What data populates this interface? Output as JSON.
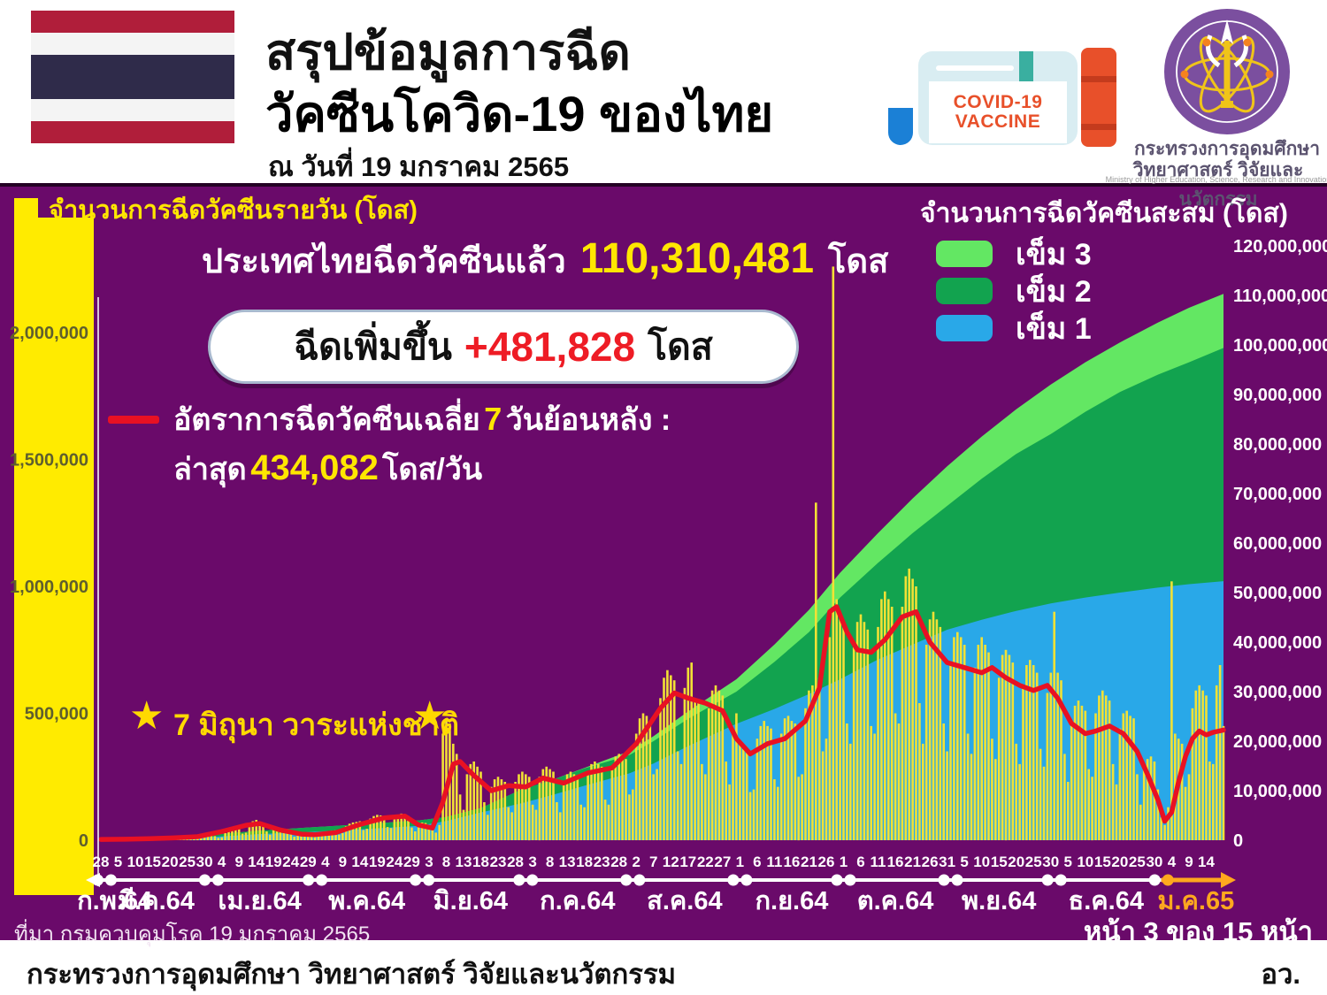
{
  "header": {
    "title_line1": "สรุปข้อมูลการฉีด",
    "title_line2": "วัคซีนโควิด-19 ของไทย",
    "date_line": "ณ วันที่ 19 มกราคม 2565",
    "vaccine_icon_line1": "COVID-19",
    "vaccine_icon_line2": "VACCINE",
    "logo_caption_line1": "กระทรวงการอุดมศึกษา",
    "logo_caption_line2": "วิทยาศาสตร์ วิจัยและนวัตกรรม",
    "logo_caption_en": "Ministry of Higher Education, Science, Research and Innovation"
  },
  "panel": {
    "daily_legend_label": "จำนวนการฉีดวัคซีนรายวัน (โดส)",
    "cumulative_legend": {
      "title": "จำนวนการฉีดวัคซีนสะสม (โดส)",
      "items": [
        {
          "label": "เข็ม 3",
          "color_key": "dose3"
        },
        {
          "label": "เข็ม 2",
          "color_key": "dose2"
        },
        {
          "label": "เข็ม 1",
          "color_key": "dose1"
        }
      ]
    },
    "total": {
      "prefix": "ประเทศไทยฉีดวัคซีนแล้ว",
      "value": "110,310,481",
      "suffix": "โดส"
    },
    "pill": {
      "prefix": "ฉีดเพิ่มขึ้น",
      "value": "+481,828",
      "suffix": "โดส"
    },
    "avg": {
      "line1_pre": "อัตราการฉีดวัคซีนเฉลี่ย",
      "line1_hl": "7",
      "line1_post": "วันย้อนหลัง :",
      "line2_pre": "ล่าสุด",
      "line2_hl": "434,082",
      "line2_post": "โดส/วัน"
    },
    "star_note": "7 มิถุนา วาระแห่งชาติ",
    "source": "ที่มา กรมควบคุมโรค 19 มกราคม 2565",
    "page": "หน้า 3 ของ 15 หน้า"
  },
  "footer": {
    "ministry": "กระทรวงการอุดมศึกษา วิทยาศาสตร์ วิจัยและนวัตกรรม",
    "abbr": "อว."
  },
  "colors": {
    "purple_bg": "#6a0a6a",
    "daily_square": "#ffeb00",
    "bar": "#f2e135",
    "dose1": "#29a8e8",
    "dose2": "#12a34f",
    "dose3": "#63e763",
    "line": "#e81123",
    "accent_yellow": "#ffe600",
    "jan_orange": "#ffa81e",
    "title_blue": "#1b80d6",
    "value_red": "#ee1c25"
  },
  "chart_data": {
    "type": "combo-bar-line-stacked-area",
    "x_start_date": "2021-02-28",
    "x_end_date": "2022-01-19",
    "left_axis": {
      "label": "จำนวนการฉีดวัคซีนรายวัน (โดส)",
      "range": [
        0,
        2000000
      ],
      "ticks": [
        {
          "v": 2000,
          "label": "2,000,000"
        },
        {
          "v": 1500,
          "label": "1,500,000"
        },
        {
          "v": 1000,
          "label": "1,000,000"
        },
        {
          "v": 500,
          "label": "500,000"
        },
        {
          "v": 0,
          "label": "0"
        }
      ]
    },
    "right_axis": {
      "label": "จำนวนการฉีดวัคซีนสะสม (โดส)",
      "range": [
        0,
        120000000
      ],
      "ticks": [
        {
          "v": 120,
          "label": "120,000,000"
        },
        {
          "v": 110,
          "label": "110,000,000"
        },
        {
          "v": 100,
          "label": "100,000,000"
        },
        {
          "v": 90,
          "label": "90,000,000"
        },
        {
          "v": 80,
          "label": "80,000,000"
        },
        {
          "v": 70,
          "label": "70,000,000"
        },
        {
          "v": 60,
          "label": "60,000,000"
        },
        {
          "v": 50,
          "label": "50,000,000"
        },
        {
          "v": 40,
          "label": "40,000,000"
        },
        {
          "v": 30,
          "label": "30,000,000"
        },
        {
          "v": 20,
          "label": "20,000,000"
        },
        {
          "v": 10,
          "label": "10,000,000"
        },
        {
          "v": 0,
          "label": "0"
        }
      ]
    },
    "x_tick_step_days": 5,
    "x_tick_labels": [
      "28",
      "5",
      "10",
      "15",
      "20",
      "25",
      "30",
      "4",
      "9",
      "14",
      "19",
      "24",
      "29",
      "4",
      "9",
      "14",
      "19",
      "24",
      "29",
      "3",
      "8",
      "13",
      "18",
      "23",
      "28",
      "3",
      "8",
      "13",
      "18",
      "23",
      "28",
      "2",
      "7",
      "12",
      "17",
      "22",
      "27",
      "1",
      "6",
      "11",
      "16",
      "21",
      "26",
      "1",
      "6",
      "11",
      "16",
      "21",
      "26",
      "31",
      "5",
      "10",
      "15",
      "20",
      "25",
      "30",
      "5",
      "10",
      "15",
      "20",
      "25",
      "30",
      "4",
      "9",
      "14"
    ],
    "month_labels": [
      {
        "d": 4,
        "label": "ก.พ.64"
      },
      {
        "d": 16,
        "label": "มี.ค.64"
      },
      {
        "d": 46,
        "label": "เม.ย.64"
      },
      {
        "d": 77,
        "label": "พ.ค.64"
      },
      {
        "d": 107,
        "label": "มิ.ย.64"
      },
      {
        "d": 138,
        "label": "ก.ค.64"
      },
      {
        "d": 169,
        "label": "ส.ค.64"
      },
      {
        "d": 200,
        "label": "ก.ย.64"
      },
      {
        "d": 230,
        "label": "ต.ค.64"
      },
      {
        "d": 260,
        "label": "พ.ย.64"
      },
      {
        "d": 291,
        "label": "ธ.ค.64"
      },
      {
        "d": 317,
        "label": "ม.ค.65",
        "highlight": true
      }
    ],
    "month_boundaries_d": [
      1,
      32,
      62,
      93,
      123,
      154,
      185,
      215,
      246,
      276,
      307
    ],
    "annotation": {
      "star_day": 99,
      "text": "7 มิถุนา วาระแห่งชาติ"
    },
    "daily_doses_k": [
      2,
      3,
      4,
      4,
      4,
      4,
      2,
      3,
      5,
      6,
      6,
      5,
      5,
      3,
      4,
      7,
      8,
      8,
      7,
      7,
      4,
      5,
      9,
      11,
      11,
      10,
      10,
      6,
      7,
      14,
      17,
      18,
      17,
      16,
      9,
      12,
      28,
      38,
      42,
      45,
      48,
      26,
      30,
      62,
      75,
      80,
      70,
      60,
      35,
      22,
      45,
      50,
      48,
      44,
      40,
      22,
      14,
      26,
      28,
      27,
      26,
      25,
      14,
      16,
      30,
      34,
      36,
      38,
      40,
      22,
      28,
      55,
      65,
      70,
      72,
      75,
      40,
      45,
      85,
      95,
      100,
      98,
      95,
      52,
      48,
      90,
      100,
      105,
      100,
      95,
      50,
      35,
      65,
      70,
      68,
      60,
      55,
      30,
      60,
      420,
      480,
      460,
      380,
      340,
      180,
      120,
      260,
      300,
      310,
      290,
      270,
      150,
      100,
      210,
      240,
      250,
      240,
      230,
      130,
      110,
      230,
      260,
      270,
      260,
      250,
      140,
      120,
      250,
      280,
      290,
      280,
      270,
      150,
      110,
      230,
      260,
      270,
      260,
      250,
      140,
      130,
      270,
      300,
      310,
      300,
      290,
      160,
      140,
      290,
      330,
      340,
      330,
      320,
      180,
      200,
      420,
      480,
      500,
      490,
      470,
      260,
      280,
      560,
      640,
      670,
      650,
      630,
      350,
      300,
      600,
      680,
      700,
      560,
      540,
      300,
      260,
      520,
      590,
      610,
      590,
      570,
      310,
      220,
      440,
      500,
      380,
      360,
      350,
      190,
      200,
      400,
      450,
      470,
      450,
      440,
      240,
      210,
      420,
      480,
      490,
      470,
      460,
      250,
      260,
      520,
      590,
      610,
      1330,
      640,
      350,
      400,
      800,
      2260,
      950,
      900,
      850,
      460,
      380,
      760,
      860,
      890,
      860,
      830,
      450,
      420,
      840,
      950,
      980,
      950,
      920,
      500,
      460,
      920,
      1040,
      1070,
      1030,
      1000,
      540,
      380,
      770,
      870,
      900,
      870,
      840,
      460,
      350,
      700,
      800,
      820,
      800,
      770,
      420,
      340,
      680,
      770,
      800,
      770,
      740,
      400,
      320,
      640,
      730,
      750,
      730,
      700,
      380,
      300,
      610,
      690,
      710,
      690,
      660,
      360,
      290,
      580,
      660,
      900,
      660,
      630,
      340,
      230,
      470,
      530,
      550,
      530,
      510,
      280,
      250,
      500,
      570,
      590,
      570,
      550,
      300,
      220,
      440,
      500,
      510,
      490,
      480,
      260,
      140,
      280,
      320,
      330,
      310,
      200,
      90,
      60,
      130,
      1020,
      420,
      400,
      380,
      210,
      260,
      520,
      590,
      610,
      590,
      570,
      310,
      300,
      610,
      690,
      450
    ],
    "avg_line_k": [
      [
        0,
        3
      ],
      [
        7,
        4
      ],
      [
        14,
        6
      ],
      [
        21,
        9
      ],
      [
        28,
        14
      ],
      [
        35,
        34
      ],
      [
        42,
        59
      ],
      [
        46,
        66
      ],
      [
        52,
        40
      ],
      [
        58,
        24
      ],
      [
        62,
        22
      ],
      [
        68,
        30
      ],
      [
        75,
        62
      ],
      [
        82,
        88
      ],
      [
        88,
        95
      ],
      [
        92,
        60
      ],
      [
        96,
        48
      ],
      [
        99,
        150
      ],
      [
        102,
        300
      ],
      [
        104,
        310
      ],
      [
        108,
        255
      ],
      [
        113,
        195
      ],
      [
        118,
        215
      ],
      [
        123,
        210
      ],
      [
        128,
        245
      ],
      [
        134,
        225
      ],
      [
        141,
        265
      ],
      [
        148,
        285
      ],
      [
        155,
        380
      ],
      [
        162,
        520
      ],
      [
        166,
        580
      ],
      [
        170,
        560
      ],
      [
        175,
        540
      ],
      [
        180,
        510
      ],
      [
        184,
        400
      ],
      [
        188,
        340
      ],
      [
        193,
        380
      ],
      [
        198,
        400
      ],
      [
        204,
        470
      ],
      [
        208,
        600
      ],
      [
        211,
        900
      ],
      [
        213,
        920
      ],
      [
        216,
        820
      ],
      [
        219,
        750
      ],
      [
        223,
        740
      ],
      [
        227,
        790
      ],
      [
        232,
        880
      ],
      [
        236,
        900
      ],
      [
        240,
        780
      ],
      [
        245,
        700
      ],
      [
        250,
        680
      ],
      [
        255,
        660
      ],
      [
        258,
        680
      ],
      [
        262,
        640
      ],
      [
        266,
        610
      ],
      [
        270,
        590
      ],
      [
        274,
        610
      ],
      [
        277,
        560
      ],
      [
        281,
        460
      ],
      [
        285,
        420
      ],
      [
        288,
        430
      ],
      [
        292,
        450
      ],
      [
        296,
        420
      ],
      [
        300,
        350
      ],
      [
        303,
        260
      ],
      [
        306,
        160
      ],
      [
        308,
        75
      ],
      [
        310,
        110
      ],
      [
        312,
        230
      ],
      [
        314,
        330
      ],
      [
        316,
        400
      ],
      [
        318,
        430
      ],
      [
        320,
        415
      ],
      [
        322,
        425
      ],
      [
        325,
        434
      ]
    ],
    "cumulative_m": [
      [
        0,
        0,
        0,
        0
      ],
      [
        15,
        0.03,
        0.04,
        0.04
      ],
      [
        31,
        0.6,
        1.0,
        1.0
      ],
      [
        45,
        1.2,
        1.9,
        1.9
      ],
      [
        61,
        1.7,
        2.6,
        2.6
      ],
      [
        75,
        2.2,
        3.2,
        3.2
      ],
      [
        92,
        2.9,
        4.0,
        4.0
      ],
      [
        100,
        3.9,
        4.7,
        4.7
      ],
      [
        110,
        5.6,
        6.5,
        6.5
      ],
      [
        122,
        7.5,
        10.3,
        10.3
      ],
      [
        130,
        9.0,
        12.0,
        12.0
      ],
      [
        140,
        11.0,
        14.5,
        14.6
      ],
      [
        153,
        13.5,
        17.2,
        18.0
      ],
      [
        160,
        15.5,
        20.0,
        21.0
      ],
      [
        170,
        19.0,
        24.5,
        26.0
      ],
      [
        184,
        23.5,
        30.0,
        32.5
      ],
      [
        195,
        26.5,
        36.0,
        39.5
      ],
      [
        205,
        29.5,
        42.0,
        46.5
      ],
      [
        214,
        32.5,
        49.0,
        54.0
      ],
      [
        225,
        36.5,
        56.0,
        62.0
      ],
      [
        235,
        39.5,
        62.0,
        69.0
      ],
      [
        245,
        42.5,
        67.5,
        75.5
      ],
      [
        255,
        44.5,
        73.0,
        81.5
      ],
      [
        265,
        46.3,
        78.0,
        87.0
      ],
      [
        275,
        47.8,
        82.0,
        92.0
      ],
      [
        285,
        49.0,
        86.5,
        96.5
      ],
      [
        295,
        50.0,
        90.5,
        100.5
      ],
      [
        306,
        51.0,
        94.0,
        104.5
      ],
      [
        315,
        51.7,
        96.5,
        107.5
      ],
      [
        325,
        52.3,
        99.4,
        110.3
      ]
    ]
  }
}
